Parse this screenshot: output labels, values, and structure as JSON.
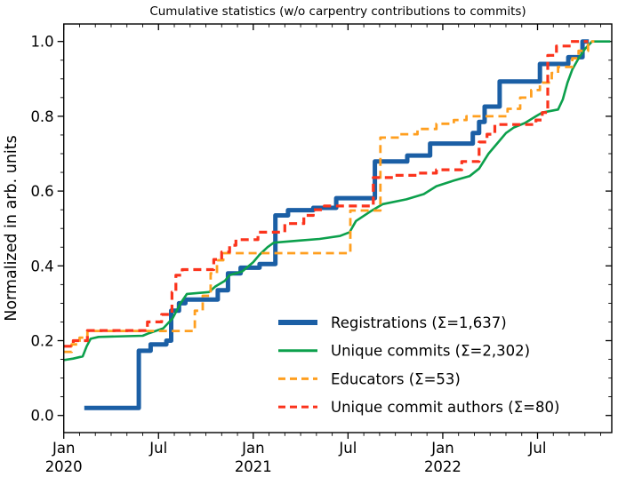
{
  "title": "Cumulative statistics (w/o carpentry contributions to commits)",
  "axes": {
    "ylabel": "Normalized in arb. units",
    "y_tick_labels": [
      "0.0",
      "0.2",
      "0.4",
      "0.6",
      "0.8",
      "1.0"
    ],
    "x_tick_labels": [
      {
        "month": 0,
        "line1": "Jan",
        "line2": "2020"
      },
      {
        "month": 6,
        "line1": "Jul",
        "line2": ""
      },
      {
        "month": 12,
        "line1": "Jan",
        "line2": "2021"
      },
      {
        "month": 18,
        "line1": "Jul",
        "line2": ""
      },
      {
        "month": 24,
        "line1": "Jan",
        "line2": "2022"
      },
      {
        "month": 30,
        "line1": "Jul",
        "line2": ""
      }
    ]
  },
  "legend": {
    "position": "lower right",
    "entries": [
      {
        "label": "Registrations  (Σ=1,637)",
        "series": "registrations"
      },
      {
        "label": "Unique commits (Σ=2,302)",
        "series": "unique-commits"
      },
      {
        "label": "Educators (Σ=53)",
        "series": "educators"
      },
      {
        "label": "Unique commit authors (Σ=80)",
        "series": "unique-commit-authors"
      }
    ]
  },
  "chart_data": {
    "type": "line",
    "x_unit": "months since 2020-01",
    "xlim": [
      0,
      34.7
    ],
    "ylim_drawn": [
      -0.047,
      1.047
    ],
    "y_major_step": 0.2,
    "y_minor_step": 0.05,
    "x_major_step_months": 6,
    "x_minor_step_months": 1,
    "grid": false,
    "series": [
      {
        "name": "registrations",
        "label": "Registrations  (Σ=1,637)",
        "total": 1637,
        "color": "#1b5fa5",
        "style": "solid",
        "width": 5,
        "draw": "step",
        "points": [
          [
            1.3,
            0.02
          ],
          [
            4.75,
            0.173
          ],
          [
            5.5,
            0.19
          ],
          [
            6.5,
            0.2
          ],
          [
            6.8,
            0.28
          ],
          [
            7.3,
            0.3
          ],
          [
            7.7,
            0.31
          ],
          [
            9.75,
            0.335
          ],
          [
            10.4,
            0.38
          ],
          [
            11.2,
            0.395
          ],
          [
            12.4,
            0.405
          ],
          [
            13.4,
            0.535
          ],
          [
            14.2,
            0.549
          ],
          [
            15.8,
            0.555
          ],
          [
            17.25,
            0.581
          ],
          [
            19.7,
            0.679
          ],
          [
            21.75,
            0.695
          ],
          [
            23.2,
            0.727
          ],
          [
            25.9,
            0.755
          ],
          [
            26.3,
            0.785
          ],
          [
            26.65,
            0.826
          ],
          [
            27.6,
            0.893
          ],
          [
            30.15,
            0.94
          ],
          [
            31.95,
            0.958
          ],
          [
            32.85,
            1.0
          ],
          [
            33.25,
            1.0
          ]
        ]
      },
      {
        "name": "unique-commits",
        "label": "Unique commits (Σ=2,302)",
        "total": 2302,
        "color": "#0ca04c",
        "style": "solid",
        "width": 2.6,
        "draw": "line",
        "points": [
          [
            0,
            0.148
          ],
          [
            0.6,
            0.152
          ],
          [
            1.2,
            0.158
          ],
          [
            1.45,
            0.185
          ],
          [
            1.7,
            0.205
          ],
          [
            2.2,
            0.21
          ],
          [
            5.0,
            0.213
          ],
          [
            5.4,
            0.22
          ],
          [
            6.3,
            0.233
          ],
          [
            6.9,
            0.26
          ],
          [
            7.4,
            0.3
          ],
          [
            7.8,
            0.325
          ],
          [
            9.2,
            0.33
          ],
          [
            9.6,
            0.345
          ],
          [
            10.2,
            0.36
          ],
          [
            10.5,
            0.375
          ],
          [
            11.3,
            0.385
          ],
          [
            12.0,
            0.41
          ],
          [
            12.4,
            0.43
          ],
          [
            12.9,
            0.45
          ],
          [
            13.3,
            0.462
          ],
          [
            15.0,
            0.468
          ],
          [
            16.2,
            0.472
          ],
          [
            17.5,
            0.48
          ],
          [
            18.1,
            0.49
          ],
          [
            18.5,
            0.52
          ],
          [
            19.4,
            0.545
          ],
          [
            20.2,
            0.565
          ],
          [
            21.7,
            0.578
          ],
          [
            22.8,
            0.592
          ],
          [
            23.6,
            0.613
          ],
          [
            24.7,
            0.628
          ],
          [
            25.7,
            0.64
          ],
          [
            26.3,
            0.66
          ],
          [
            26.9,
            0.7
          ],
          [
            27.5,
            0.73
          ],
          [
            28.0,
            0.755
          ],
          [
            28.5,
            0.77
          ],
          [
            29.2,
            0.782
          ],
          [
            29.9,
            0.8
          ],
          [
            30.3,
            0.81
          ],
          [
            31.3,
            0.818
          ],
          [
            31.6,
            0.845
          ],
          [
            31.9,
            0.89
          ],
          [
            32.2,
            0.925
          ],
          [
            32.6,
            0.955
          ],
          [
            33.0,
            0.98
          ],
          [
            33.45,
            1.0
          ],
          [
            34.6,
            1.0
          ]
        ]
      },
      {
        "name": "educators",
        "label": "Educators (Σ=53)",
        "total": 53,
        "color": "#ff9f1f",
        "style": "dashed",
        "width": 2.8,
        "draw": "step",
        "points": [
          [
            0,
            0.17
          ],
          [
            0.5,
            0.19
          ],
          [
            1.0,
            0.208
          ],
          [
            1.5,
            0.226
          ],
          [
            8.3,
            0.28
          ],
          [
            8.8,
            0.32
          ],
          [
            9.3,
            0.38
          ],
          [
            9.7,
            0.415
          ],
          [
            10.1,
            0.434
          ],
          [
            18.15,
            0.548
          ],
          [
            20.05,
            0.743
          ],
          [
            21.3,
            0.752
          ],
          [
            22.4,
            0.766
          ],
          [
            23.6,
            0.78
          ],
          [
            24.7,
            0.79
          ],
          [
            25.5,
            0.8
          ],
          [
            28.1,
            0.82
          ],
          [
            28.9,
            0.85
          ],
          [
            29.6,
            0.87
          ],
          [
            30.15,
            0.89
          ],
          [
            30.9,
            0.916
          ],
          [
            31.3,
            0.932
          ],
          [
            32.2,
            0.955
          ],
          [
            32.6,
            0.975
          ],
          [
            33.2,
            1.0
          ],
          [
            33.6,
            1.0
          ]
        ]
      },
      {
        "name": "unique-commit-authors",
        "label": "Unique commit authors (Σ=80)",
        "total": 80,
        "color": "#fb331c",
        "style": "dashed",
        "width": 3.2,
        "draw": "step",
        "points": [
          [
            0,
            0.185
          ],
          [
            0.6,
            0.2
          ],
          [
            1.5,
            0.227
          ],
          [
            5.3,
            0.25
          ],
          [
            6.2,
            0.27
          ],
          [
            6.85,
            0.33
          ],
          [
            7.1,
            0.375
          ],
          [
            7.5,
            0.39
          ],
          [
            9.5,
            0.417
          ],
          [
            10.0,
            0.437
          ],
          [
            10.5,
            0.455
          ],
          [
            10.9,
            0.47
          ],
          [
            12.3,
            0.49
          ],
          [
            14.0,
            0.513
          ],
          [
            15.2,
            0.535
          ],
          [
            15.8,
            0.55
          ],
          [
            16.5,
            0.56
          ],
          [
            19.6,
            0.636
          ],
          [
            21.0,
            0.642
          ],
          [
            22.5,
            0.648
          ],
          [
            23.6,
            0.657
          ],
          [
            25.2,
            0.679
          ],
          [
            26.3,
            0.731
          ],
          [
            26.8,
            0.752
          ],
          [
            27.3,
            0.778
          ],
          [
            29.9,
            0.79
          ],
          [
            30.3,
            0.81
          ],
          [
            30.65,
            0.963
          ],
          [
            31.2,
            0.988
          ],
          [
            32.1,
            1.0
          ],
          [
            33.2,
            1.0
          ]
        ]
      }
    ]
  }
}
